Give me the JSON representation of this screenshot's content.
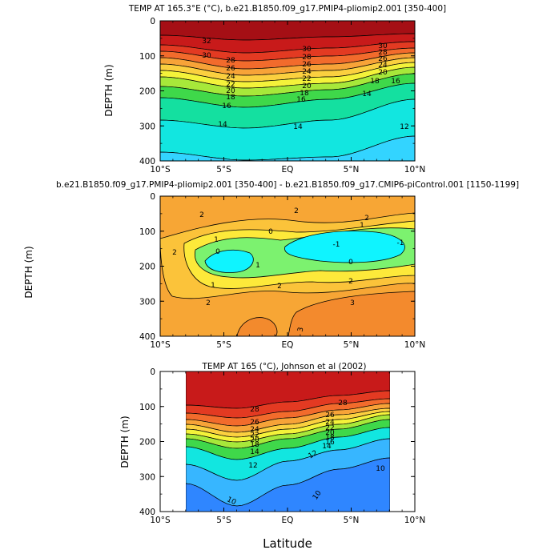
{
  "colors": {
    "warm": [
      "#a50f15",
      "#c81a1a",
      "#e33a22",
      "#f26b2c",
      "#f7a338",
      "#fbd03f",
      "#f4f23a",
      "#a7e83a",
      "#3fd84a",
      "#14e0a0",
      "#12e6e0",
      "#33d4ff",
      "#37b6ff",
      "#2f86ff",
      "#2756e6"
    ],
    "anomaly": [
      "#0ff4ff",
      "#7cf26f",
      "#fde93a",
      "#fbc33a",
      "#f7a635",
      "#f38a2d"
    ],
    "line": "#000000"
  },
  "chart_data": [
    {
      "type": "heatmap",
      "title": "TEMP AT 165.3°E (°C), b.e21.B1850.f09_g17.PMIP4-pliomip2.001 [350-400]",
      "ylabel": "DEPTH (m)",
      "xlabel": "",
      "xlim": [
        -10,
        10
      ],
      "ylim": [
        400,
        0
      ],
      "xticks": [
        "10°S",
        "5°S",
        "EQ",
        "5°N",
        "10°N"
      ],
      "yticks": [
        "0",
        "100",
        "200",
        "300",
        "400"
      ],
      "contour_labels": [
        "32",
        "30",
        "28",
        "26",
        "24",
        "22",
        "20",
        "18",
        "16",
        "14",
        "12",
        "30",
        "28",
        "26",
        "24",
        "22",
        "20",
        "18",
        "16",
        "14",
        "12"
      ],
      "depths": [
        0,
        60,
        90,
        110,
        130,
        150,
        170,
        190,
        210,
        240,
        280,
        330,
        400
      ],
      "values_at": [
        -10,
        0,
        10
      ],
      "isotherm_depths": {
        "30": [
          55,
          70,
          60
        ],
        "28": [
          80,
          95,
          75
        ],
        "24": [
          110,
          130,
          95
        ],
        "20": [
          140,
          170,
          120
        ],
        "16": [
          190,
          230,
          150
        ],
        "14": [
          250,
          300,
          200
        ],
        "12": [
          400,
          400,
          300
        ]
      }
    },
    {
      "type": "heatmap",
      "title": "b.e21.B1850.f09_g17.PMIP4-pliomip2.001 [350-400] - b.e21.B1850.f09_g17.CMIP6-piControl.001 [1150-1199]",
      "ylabel": "DEPTH (m)",
      "xlabel": "",
      "xlim": [
        -10,
        10
      ],
      "ylim": [
        400,
        0
      ],
      "xticks": [
        "10°S",
        "5°S",
        "EQ",
        "5°N",
        "10°N"
      ],
      "yticks": [
        "0",
        "100",
        "200",
        "300",
        "400"
      ],
      "contour_labels": [
        "2",
        "2",
        "2",
        "2",
        "2",
        "1",
        "1",
        "1",
        "0",
        "0",
        "0",
        "-1",
        "-1",
        "1",
        "2",
        "3",
        "3",
        "3"
      ],
      "minimum_cores": [
        {
          "lat": -5.0,
          "depth": 180,
          "value": -1
        },
        {
          "lat": 5.0,
          "depth": 150,
          "value": -1
        }
      ]
    },
    {
      "type": "heatmap",
      "title": "TEMP AT 165 (°C), Johnson et al (2002)",
      "ylabel": "DEPTH (m)",
      "xlabel": "Latitude",
      "xlim": [
        -10,
        10
      ],
      "data_xlim": [
        -8,
        8
      ],
      "ylim": [
        400,
        0
      ],
      "xticks": [
        "10°S",
        "5°S",
        "EQ",
        "5°N",
        "10°N"
      ],
      "yticks": [
        "0",
        "100",
        "200",
        "300",
        "400"
      ],
      "contour_labels": [
        "28",
        "28",
        "26",
        "26",
        "24",
        "24",
        "22",
        "22",
        "20",
        "20",
        "18",
        "18",
        "16",
        "14",
        "14",
        "12",
        "12",
        "10",
        "10",
        "10"
      ]
    }
  ]
}
